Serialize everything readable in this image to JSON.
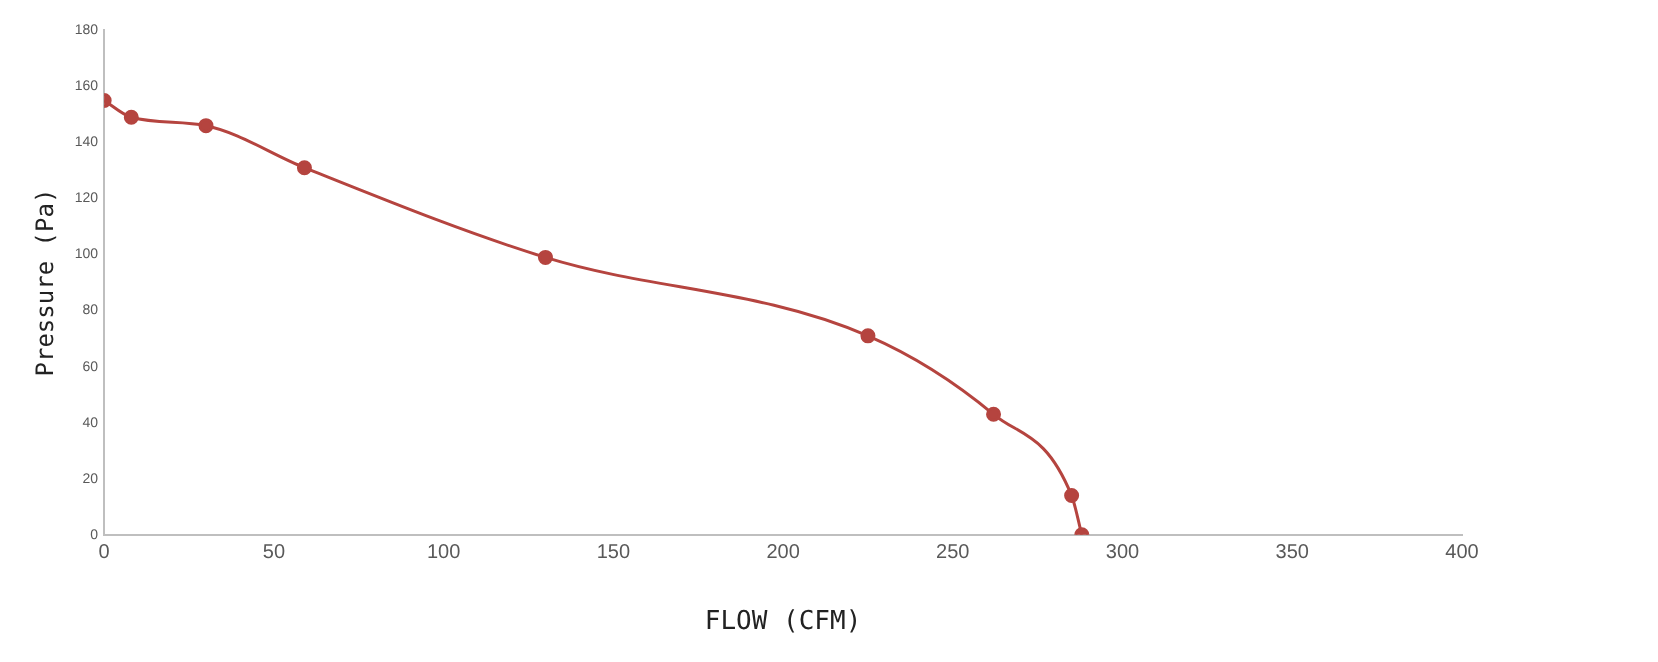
{
  "chart_data": {
    "type": "line",
    "xlabel": "FLOW (CFM)",
    "ylabel": "Pressure (Pa)",
    "x": [
      0,
      8,
      30,
      59,
      130,
      225,
      262,
      285,
      288
    ],
    "series": [
      {
        "color": "#b5443f",
        "values": [
          155,
          149,
          146,
          131,
          99,
          71,
          43,
          14,
          0
        ]
      }
    ],
    "xlim": [
      0,
      400
    ],
    "xticks": [
      0,
      50,
      100,
      150,
      200,
      250,
      300,
      350,
      400
    ],
    "ylim": [
      0,
      180
    ],
    "yticks": [
      0,
      20,
      40,
      60,
      80,
      100,
      120,
      140,
      160,
      180
    ],
    "grid": false,
    "legend": false,
    "marker": "circle",
    "line_style": "solid"
  }
}
